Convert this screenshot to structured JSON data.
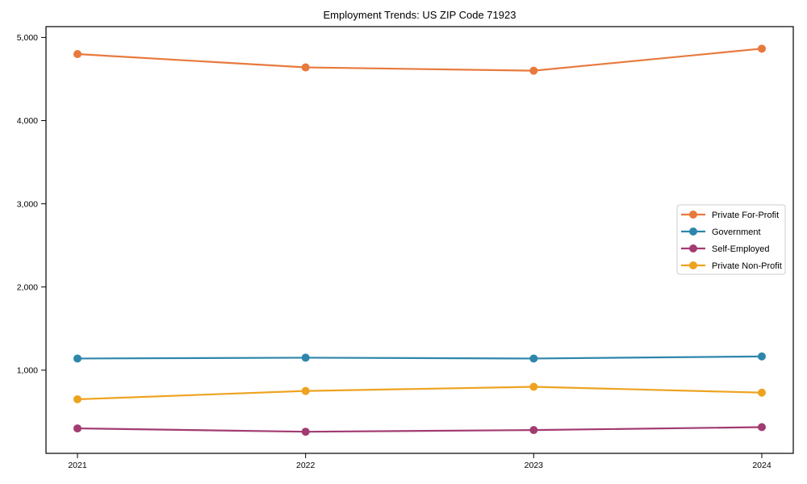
{
  "chart_data": {
    "type": "line",
    "title": "Employment Trends: US ZIP Code 71923",
    "xlabel": "",
    "ylabel": "",
    "categories": [
      "2021",
      "2022",
      "2023",
      "2024"
    ],
    "series": [
      {
        "name": "Private For-Profit",
        "color": "#E8793D",
        "values": [
          4800,
          4640,
          4600,
          4865
        ]
      },
      {
        "name": "Government",
        "color": "#2E86AB",
        "values": [
          1140,
          1150,
          1140,
          1165
        ]
      },
      {
        "name": "Self-Employed",
        "color": "#A23B72",
        "values": [
          300,
          260,
          280,
          315
        ]
      },
      {
        "name": "Private Non-Profit",
        "color": "#EEA320",
        "values": [
          650,
          750,
          800,
          730
        ]
      }
    ],
    "y_ticks": [
      {
        "value": 1000,
        "label": "1,000"
      },
      {
        "value": 2000,
        "label": "2,000"
      },
      {
        "value": 3000,
        "label": "3,000"
      },
      {
        "value": 4000,
        "label": "4,000"
      },
      {
        "value": 5000,
        "label": "5,000"
      }
    ],
    "ylim": [
      0,
      5130
    ],
    "grid": false,
    "legend_position": "center-right",
    "marker": "circle",
    "line_width": 2.2,
    "marker_radius": 5
  }
}
